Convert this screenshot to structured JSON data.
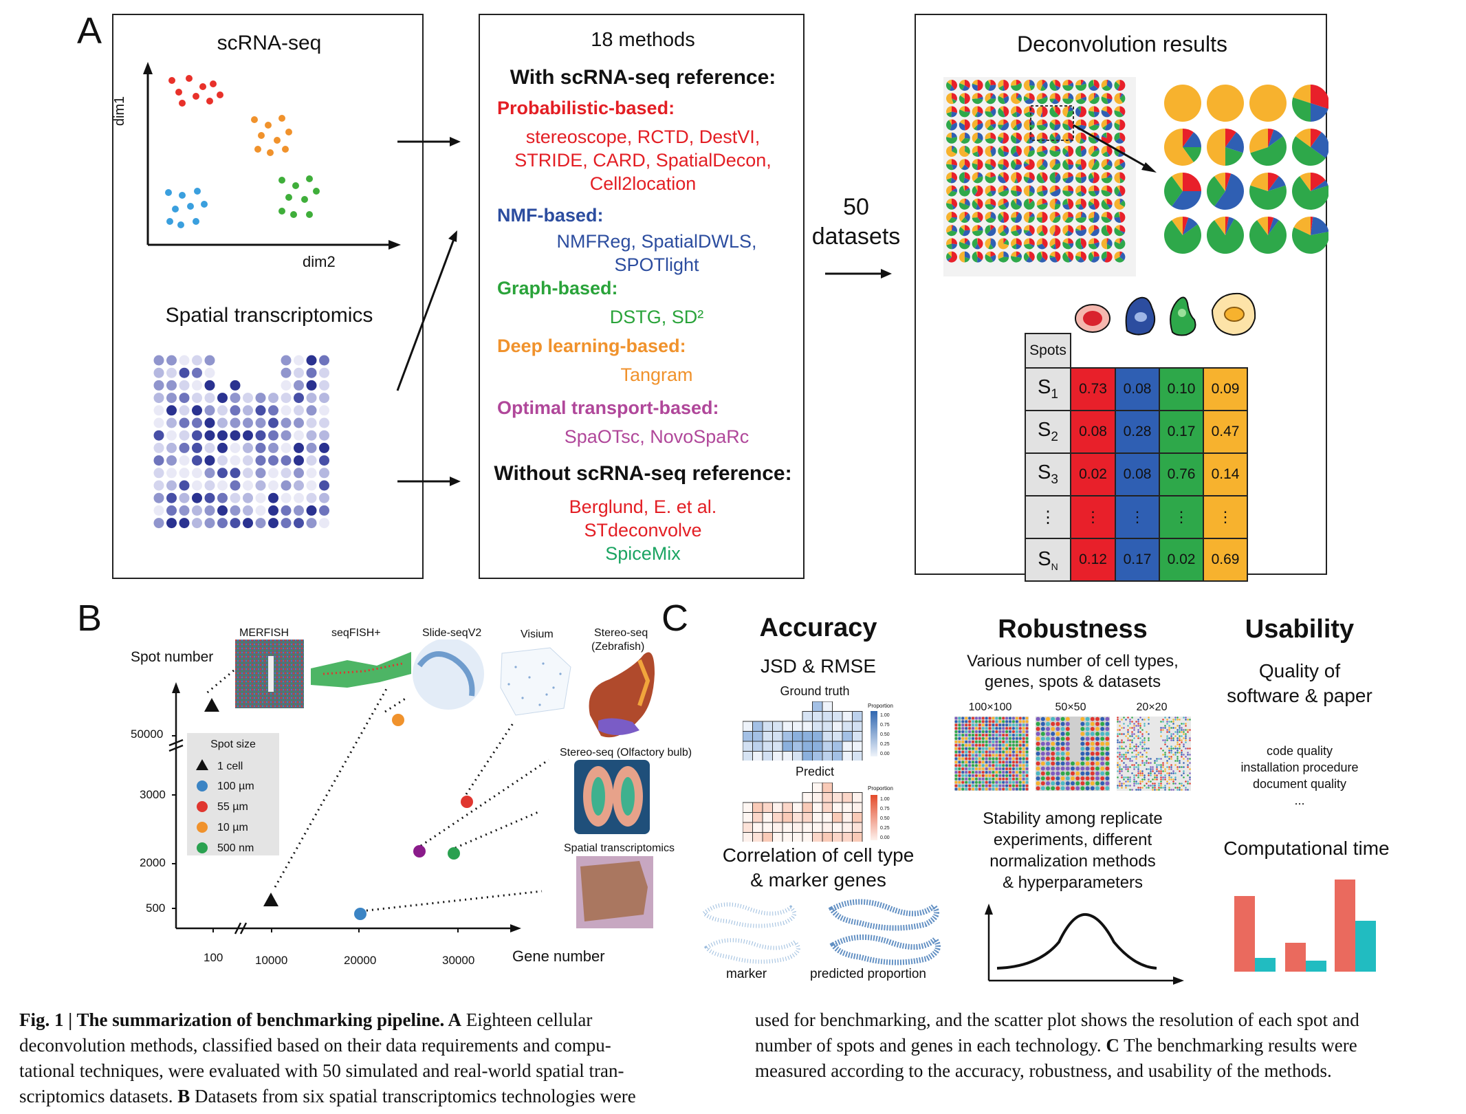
{
  "panelA": {
    "letter": "A",
    "left": {
      "title": "scRNA-seq",
      "axis_y": "dim1",
      "axis_x": "dim2",
      "spatial_title": "Spatial transcriptomics"
    },
    "middle": {
      "title": "18 methods",
      "with_ref": "With scRNA-seq reference:",
      "groups": [
        {
          "label": "Probabilistic-based:",
          "methods": [
            "stereoscope, RCTD, DestVI,",
            "STRIDE,  CARD, SpatialDecon,",
            "Cell2location"
          ]
        },
        {
          "label": "NMF-based:",
          "methods": [
            "NMFReg, SpatialDWLS,",
            "SPOTlight"
          ]
        },
        {
          "label": "Graph-based:",
          "methods": [
            "DSTG, SD²"
          ]
        },
        {
          "label": "Deep learning-based:",
          "methods": [
            "Tangram"
          ]
        },
        {
          "label": "Optimal transport-based:",
          "methods": [
            "SpaOTsc, NovoSpaRc"
          ]
        }
      ],
      "without_ref": "Without scRNA-seq reference:",
      "without_methods": [
        "Berglund, E. et al.",
        "STdeconvolve",
        "SpiceMix"
      ]
    },
    "datasets_count": "50",
    "datasets_label": "datasets",
    "right": {
      "title": "Deconvolution results",
      "table_header": "Spots",
      "rows": [
        {
          "label": "S",
          "sub": "1",
          "values": [
            "0.73",
            "0.08",
            "0.10",
            "0.09"
          ]
        },
        {
          "label": "S",
          "sub": "2",
          "values": [
            "0.08",
            "0.28",
            "0.17",
            "0.47"
          ]
        },
        {
          "label": "S",
          "sub": "3",
          "values": [
            "0.02",
            "0.08",
            "0.76",
            "0.14"
          ]
        },
        {
          "label": "⋮",
          "sub": "",
          "values": [
            "⋮",
            "⋮",
            "⋮",
            "⋮"
          ]
        },
        {
          "label": "S",
          "sub": "N",
          "values": [
            "0.12",
            "0.17",
            "0.02",
            "0.69"
          ]
        }
      ],
      "colors": [
        "#e8202a",
        "#2f5fb3",
        "#2ea84a",
        "#f7b22e"
      ]
    }
  },
  "panelB": {
    "letter": "B",
    "y_label": "Spot number",
    "x_label": "Gene number",
    "y_ticks": [
      "50000",
      "3000",
      "2000",
      "500"
    ],
    "x_ticks": [
      "100",
      "10000",
      "20000",
      "30000"
    ],
    "legend_title": "Spot size",
    "legend": [
      {
        "label": "1 cell",
        "shape": "triangle",
        "color": "#111111"
      },
      {
        "label": "100 µm",
        "shape": "circle",
        "color": "#3b84c4"
      },
      {
        "label": "55 µm",
        "shape": "circle",
        "color": "#e0362f"
      },
      {
        "label": "10 µm",
        "shape": "circle",
        "color": "#f0922c"
      },
      {
        "label": "500 nm",
        "shape": "circle",
        "color": "#2aa150"
      }
    ],
    "tech_labels": [
      "MERFISH",
      "seqFISH+",
      "Slide-seqV2",
      "Visium",
      "Stereo-seq",
      "(Zebrafish)",
      "Stereo-seq (Olfactory bulb)",
      "Spatial transcriptomics"
    ]
  },
  "panelC": {
    "letter": "C",
    "accuracy": {
      "title": "Accuracy",
      "sub": "JSD & RMSE",
      "ground_truth": "Ground truth",
      "predict": "Predict",
      "proportion": "Proportion",
      "scale": [
        "1.00",
        "0.75",
        "0.50",
        "0.25",
        "0.00"
      ],
      "corr1": "Correlation of cell type",
      "corr2": "& marker genes",
      "marker": "marker",
      "predicted": "predicted proportion"
    },
    "robustness": {
      "title": "Robustness",
      "line1": "Various number of cell types,",
      "line2": "genes, spots & datasets",
      "grids": [
        "100×100",
        "50×50",
        "20×20"
      ],
      "stab": [
        "Stability among replicate",
        "experiments, different",
        "normalization methods",
        "& hyperparameters"
      ]
    },
    "usability": {
      "title": "Usability",
      "sub1": "Quality of",
      "sub2": "software & paper",
      "items": [
        "code quality",
        "installation procedure",
        "document quality",
        "..."
      ],
      "time": "Computational time"
    }
  },
  "caption": {
    "left": [
      {
        "bold": "Fig. 1 | The summarization of benchmarking pipeline. A",
        "text": " Eighteen cellular"
      },
      {
        "bold": "",
        "text": "deconvolution methods, classified based on their data requirements and compu-"
      },
      {
        "bold": "",
        "text": "tational techniques, were evaluated with 50 simulated and real-world spatial tran-"
      },
      {
        "bold": "",
        "text": "scriptomics datasets. "
      }
    ],
    "left_last_bold": "B",
    "left_last_tail": " Datasets from six spatial transcriptomics technologies were",
    "right": [
      "used for benchmarking, and the scatter plot shows the resolution of each spot and",
      "number of spots and genes in each technology. ",
      "measured according to the accuracy, robustness, and usability of the methods."
    ],
    "right_c_bold": "C",
    "right_c_tail": " The benchmarking results were"
  }
}
